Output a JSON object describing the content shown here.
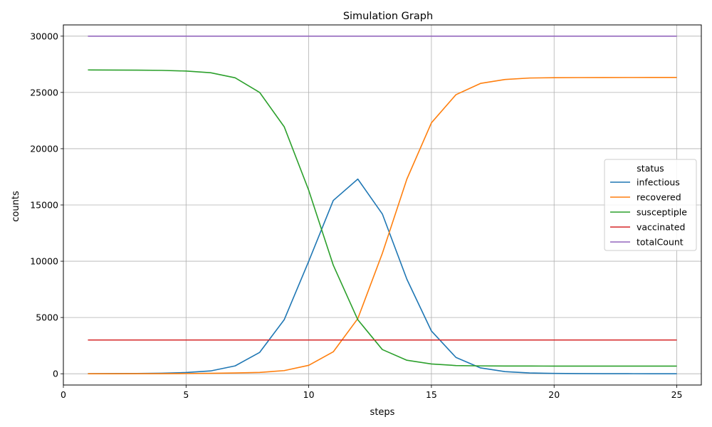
{
  "chart_data": {
    "type": "line",
    "title": "Simulation Graph",
    "xlabel": "steps",
    "ylabel": "counts",
    "xlim": [
      0,
      26
    ],
    "ylim": [
      -1000,
      31000
    ],
    "xticks": [
      0,
      5,
      10,
      15,
      20,
      25
    ],
    "yticks": [
      0,
      5000,
      10000,
      15000,
      20000,
      25000,
      30000
    ],
    "grid": true,
    "legend": {
      "title": "status",
      "position": "center-right"
    },
    "x": [
      1,
      2,
      3,
      4,
      5,
      6,
      7,
      8,
      9,
      10,
      11,
      12,
      13,
      14,
      15,
      16,
      17,
      18,
      19,
      20,
      21,
      22,
      23,
      24,
      25
    ],
    "series": [
      {
        "name": "infectious",
        "color": "#1f77b4",
        "values": [
          10,
          15,
          25,
          50,
          110,
          250,
          700,
          1900,
          4800,
          10000,
          15400,
          17300,
          14200,
          8400,
          3800,
          1450,
          520,
          190,
          70,
          30,
          15,
          8,
          5,
          3,
          2
        ]
      },
      {
        "name": "recovered",
        "color": "#ff7f0e",
        "values": [
          0,
          2,
          5,
          10,
          20,
          40,
          70,
          120,
          280,
          750,
          1950,
          4900,
          10700,
          17300,
          22300,
          24800,
          25800,
          26150,
          26280,
          26310,
          26320,
          26325,
          26328,
          26330,
          26330
        ]
      },
      {
        "name": "susceptiple",
        "color": "#2ca02c",
        "values": [
          27000,
          26990,
          26980,
          26960,
          26900,
          26750,
          26300,
          25000,
          21950,
          16300,
          9650,
          4800,
          2150,
          1200,
          870,
          730,
          700,
          690,
          685,
          682,
          680,
          679,
          678,
          677,
          677
        ]
      },
      {
        "name": "vaccinated",
        "color": "#d62728",
        "values": [
          3000,
          3000,
          3000,
          3000,
          3000,
          3000,
          3000,
          3000,
          3000,
          3000,
          3000,
          3000,
          3000,
          3000,
          3000,
          3000,
          3000,
          3000,
          3000,
          3000,
          3000,
          3000,
          3000,
          3000,
          3000
        ]
      },
      {
        "name": "totalCount",
        "color": "#9467bd",
        "values": [
          30000,
          30000,
          30000,
          30000,
          30000,
          30000,
          30000,
          30000,
          30000,
          30000,
          30000,
          30000,
          30000,
          30000,
          30000,
          30000,
          30000,
          30000,
          30000,
          30000,
          30000,
          30000,
          30000,
          30000,
          30000
        ]
      }
    ]
  }
}
